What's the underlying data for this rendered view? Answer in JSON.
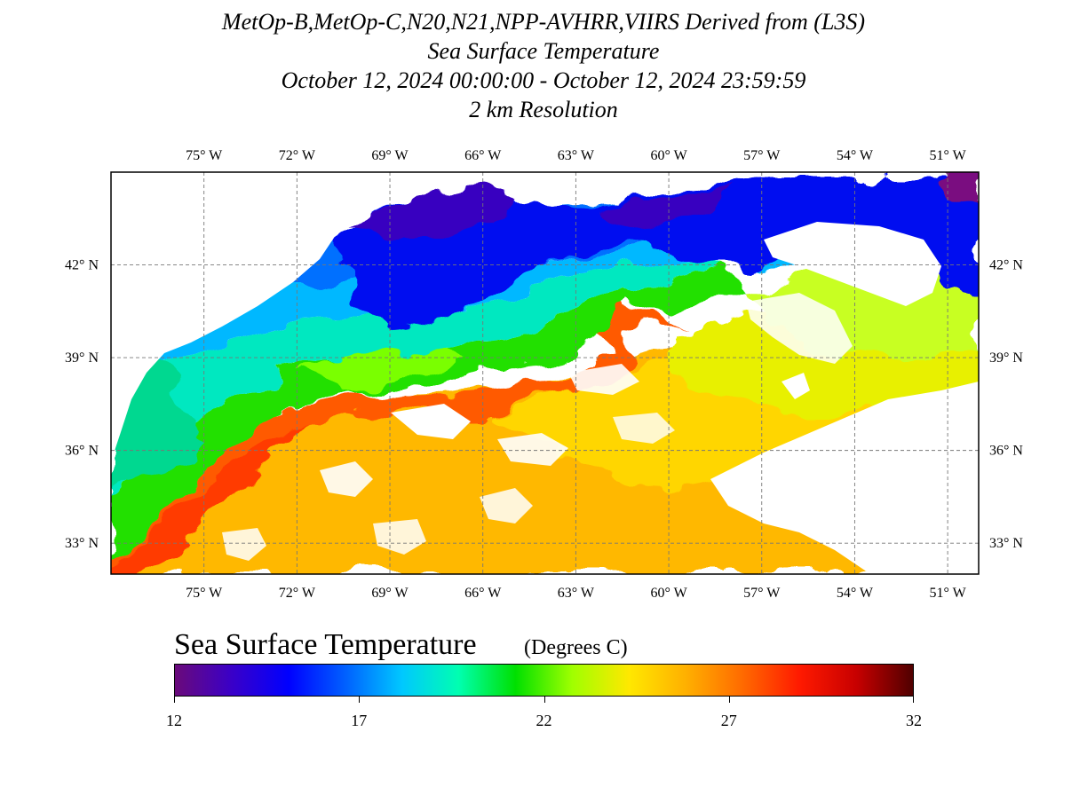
{
  "title": {
    "line1": "MetOp-B,MetOp-C,N20,N21,NPP-AVHRR,VIIRS Derived from (L3S)",
    "line2": "Sea Surface Temperature",
    "line3": "October 12, 2024 00:00:00 - October 12, 2024 23:59:59",
    "line4": "2 km Resolution"
  },
  "map": {
    "lon_min": -78,
    "lon_max": -50,
    "lat_min": 32,
    "lat_max": 45,
    "lon_ticks": [
      {
        "value": -75,
        "label": "75° W"
      },
      {
        "value": -72,
        "label": "72° W"
      },
      {
        "value": -69,
        "label": "69° W"
      },
      {
        "value": -66,
        "label": "66° W"
      },
      {
        "value": -63,
        "label": "63° W"
      },
      {
        "value": -60,
        "label": "60° W"
      },
      {
        "value": -57,
        "label": "57° W"
      },
      {
        "value": -54,
        "label": "54° W"
      },
      {
        "value": -51,
        "label": "51° W"
      }
    ],
    "lat_ticks": [
      {
        "value": 42,
        "label": "42° N"
      },
      {
        "value": 39,
        "label": "39° N"
      },
      {
        "value": 36,
        "label": "36° N"
      },
      {
        "value": 33,
        "label": "33° N"
      }
    ]
  },
  "colorbar": {
    "title": "Sea Surface Temperature",
    "units": "(Degrees C)",
    "min": 12,
    "max": 32,
    "ticks": [
      {
        "value": 12,
        "label": "12"
      },
      {
        "value": 17,
        "label": "17"
      },
      {
        "value": 22,
        "label": "22"
      },
      {
        "value": 27,
        "label": "27"
      },
      {
        "value": 32,
        "label": "32"
      }
    ],
    "colors": [
      "#6a0a7a",
      "#3a00c8",
      "#0000ff",
      "#0060ff",
      "#00c8ff",
      "#00ffb0",
      "#00e000",
      "#a0ff00",
      "#ffe800",
      "#ffb000",
      "#ff6a00",
      "#ff1a00",
      "#c80000",
      "#500000"
    ]
  }
}
